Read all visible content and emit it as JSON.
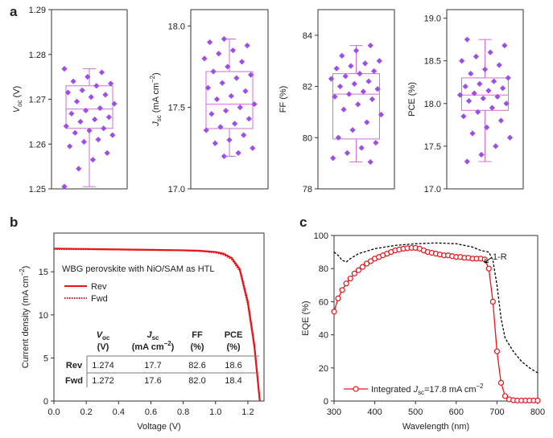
{
  "panel_labels": [
    "a",
    "b",
    "c"
  ],
  "chart_data": [
    {
      "type": "box",
      "y_label": [
        "V",
        "oc",
        " (V)"
      ],
      "ylim": [
        1.25,
        1.29
      ],
      "yticks": [
        1.25,
        1.26,
        1.27,
        1.28,
        1.29
      ],
      "color": "#9d4ee8",
      "box_color": "#cf6fd6",
      "box": {
        "whisker_low": 1.2505,
        "q1": 1.2635,
        "median": 1.2678,
        "q3": 1.273,
        "whisker_high": 1.2768
      },
      "points": [
        1.2505,
        1.2545,
        1.2565,
        1.258,
        1.2595,
        1.2605,
        1.261,
        1.262,
        1.2625,
        1.263,
        1.2635,
        1.264,
        1.265,
        1.2655,
        1.266,
        1.2668,
        1.2675,
        1.268,
        1.269,
        1.2695,
        1.2705,
        1.271,
        1.2715,
        1.272,
        1.273,
        1.2735,
        1.274,
        1.275,
        1.276,
        1.2768
      ]
    },
    {
      "type": "box",
      "y_label": [
        "J",
        "sc",
        " (mA cm",
        "−2",
        ")"
      ],
      "ylim": [
        17.0,
        18.1
      ],
      "yticks": [
        {
          "value": 17,
          "label": "17.0"
        },
        17.5,
        {
          "value": 18,
          "label": "18.0"
        }
      ],
      "color": "#9d4ee8",
      "box_color": "#cf6fd6",
      "box": {
        "whisker_low": 17.2,
        "q1": 17.37,
        "median": 17.52,
        "q3": 17.72,
        "whisker_high": 17.92
      },
      "points": [
        17.2,
        17.22,
        17.25,
        17.28,
        17.3,
        17.33,
        17.36,
        17.38,
        17.4,
        17.43,
        17.46,
        17.48,
        17.5,
        17.52,
        17.55,
        17.57,
        17.6,
        17.62,
        17.65,
        17.68,
        17.7,
        17.72,
        17.75,
        17.78,
        17.8,
        17.83,
        17.85,
        17.88,
        17.9,
        17.92
      ]
    },
    {
      "type": "box",
      "y_label": [
        "FF (%)"
      ],
      "ylim": [
        78,
        85
      ],
      "yticks": [
        78,
        80,
        82,
        84
      ],
      "color": "#9d4ee8",
      "box_color": "#cf6fd6",
      "box": {
        "whisker_low": 79.05,
        "q1": 79.95,
        "median": 81.7,
        "q3": 82.5,
        "whisker_high": 83.6
      },
      "points": [
        79.05,
        79.2,
        79.4,
        79.6,
        79.8,
        80.0,
        80.3,
        80.6,
        80.9,
        81.1,
        81.3,
        81.5,
        81.6,
        81.7,
        81.8,
        81.9,
        82.0,
        82.1,
        82.2,
        82.3,
        82.4,
        82.5,
        82.6,
        82.7,
        82.8,
        82.9,
        83.0,
        83.2,
        83.4,
        83.6
      ]
    },
    {
      "type": "box",
      "y_label": [
        "PCE (%)"
      ],
      "ylim": [
        17.0,
        19.1
      ],
      "yticks": [
        {
          "value": 17,
          "label": "17.0"
        },
        17.5,
        {
          "value": 18,
          "label": "18.0"
        },
        18.5,
        {
          "value": 19,
          "label": "19.0"
        }
      ],
      "color": "#9d4ee8",
      "box_color": "#cf6fd6",
      "box": {
        "whisker_low": 17.32,
        "q1": 17.92,
        "median": 18.1,
        "q3": 18.3,
        "whisker_high": 18.75
      },
      "points": [
        17.32,
        17.4,
        17.5,
        17.6,
        17.65,
        17.72,
        17.8,
        17.85,
        17.9,
        17.95,
        18.0,
        18.03,
        18.06,
        18.08,
        18.1,
        18.12,
        18.15,
        18.18,
        18.2,
        18.23,
        18.26,
        18.3,
        18.35,
        18.4,
        18.45,
        18.5,
        18.55,
        18.6,
        18.68,
        18.75
      ]
    },
    {
      "type": "line",
      "x_label": "Voltage (V)",
      "y_label": [
        "Current density (mA cm",
        "−2",
        ")"
      ],
      "xlim": [
        0,
        1.3
      ],
      "xticks": [
        {
          "value": 0,
          "label": "0.0"
        },
        0.2,
        0.4,
        0.6,
        0.8,
        {
          "value": 1,
          "label": "1.0"
        },
        1.2
      ],
      "ylim": [
        0,
        19.5
      ],
      "yticks": [
        0,
        5,
        10,
        15
      ],
      "annotation": "WBG perovskite with NiO/SAM as HTL",
      "series": [
        {
          "name": "Rev",
          "color": "#e8141b",
          "style": "solid",
          "x": [
            0,
            0.2,
            0.4,
            0.6,
            0.8,
            0.9,
            1.0,
            1.05,
            1.1,
            1.15,
            1.2,
            1.24,
            1.274
          ],
          "values": [
            17.7,
            17.65,
            17.6,
            17.55,
            17.5,
            17.45,
            17.3,
            17.1,
            16.6,
            15.3,
            11.5,
            6.5,
            0
          ]
        },
        {
          "name": "Fwd",
          "color": "#e8141b",
          "style": "dotted",
          "x": [
            0,
            0.2,
            0.4,
            0.6,
            0.8,
            0.9,
            1.0,
            1.05,
            1.1,
            1.15,
            1.2,
            1.24,
            1.272
          ],
          "values": [
            17.6,
            17.58,
            17.55,
            17.5,
            17.45,
            17.38,
            17.2,
            16.95,
            16.4,
            15.0,
            11.0,
            6.0,
            0
          ]
        }
      ],
      "table": {
        "headers": [
          {
            "line1": [
              "V",
              "oc"
            ],
            "line2": [
              "(V)"
            ]
          },
          {
            "line1": [
              "J",
              "sc"
            ],
            "line2": [
              "(mA cm",
              "−2",
              ")"
            ]
          },
          {
            "line1": [
              "FF"
            ],
            "line2": [
              "(%)"
            ]
          },
          {
            "line1": [
              "PCE"
            ],
            "line2": [
              "(%)"
            ]
          }
        ],
        "rows": [
          [
            "Rev",
            "1.274",
            "17.7",
            "82.6",
            "18.6"
          ],
          [
            "Fwd",
            "1.272",
            "17.6",
            "82.0",
            "18.4"
          ]
        ]
      }
    },
    {
      "type": "line",
      "x_label": "Wavelength (nm)",
      "y_label": [
        "EQE (%)"
      ],
      "xlim": [
        300,
        800
      ],
      "xticks": [
        300,
        400,
        500,
        600,
        700,
        800
      ],
      "ylim": [
        0,
        100
      ],
      "yticks": [
        0,
        20,
        40,
        60,
        80,
        100
      ],
      "series": [
        {
          "name": [
            "Integrated ",
            "J",
            "sc",
            "=17.8 mA cm",
            "−2"
          ],
          "color": "#e8141b",
          "style": "solid",
          "marker": "circle",
          "x": [
            300,
            310,
            320,
            330,
            340,
            350,
            360,
            370,
            380,
            390,
            400,
            410,
            420,
            430,
            440,
            450,
            460,
            470,
            480,
            490,
            500,
            510,
            520,
            530,
            540,
            550,
            560,
            570,
            580,
            590,
            600,
            610,
            620,
            630,
            640,
            650,
            660,
            670,
            680,
            690,
            700,
            710,
            720,
            730,
            740,
            750,
            760,
            770,
            780,
            790,
            800
          ],
          "values": [
            54,
            62,
            67,
            71,
            74,
            77,
            79,
            81,
            83,
            84.5,
            86,
            87,
            88,
            89,
            90,
            91,
            91.5,
            92,
            92.3,
            92.5,
            92.5,
            92,
            91,
            90,
            89.5,
            89,
            88.5,
            88,
            88,
            87.5,
            87,
            87,
            86.5,
            86.5,
            86,
            86,
            86,
            85.5,
            80,
            60,
            30,
            11,
            3,
            1,
            0.5,
            0.3,
            0.3,
            0.3,
            0.3,
            0.3,
            0.3
          ]
        },
        {
          "name": "1-R",
          "color": "#000000",
          "style": "dashed",
          "x": [
            300,
            310,
            320,
            330,
            340,
            360,
            400,
            450,
            500,
            550,
            600,
            640,
            660,
            680,
            690,
            700,
            710,
            720,
            740,
            760,
            780,
            800
          ],
          "values": [
            90,
            88,
            85,
            84,
            86,
            89,
            92,
            94,
            95,
            95.5,
            95,
            93,
            91,
            90,
            85,
            70,
            50,
            38,
            30,
            24,
            20,
            17
          ]
        }
      ]
    }
  ]
}
